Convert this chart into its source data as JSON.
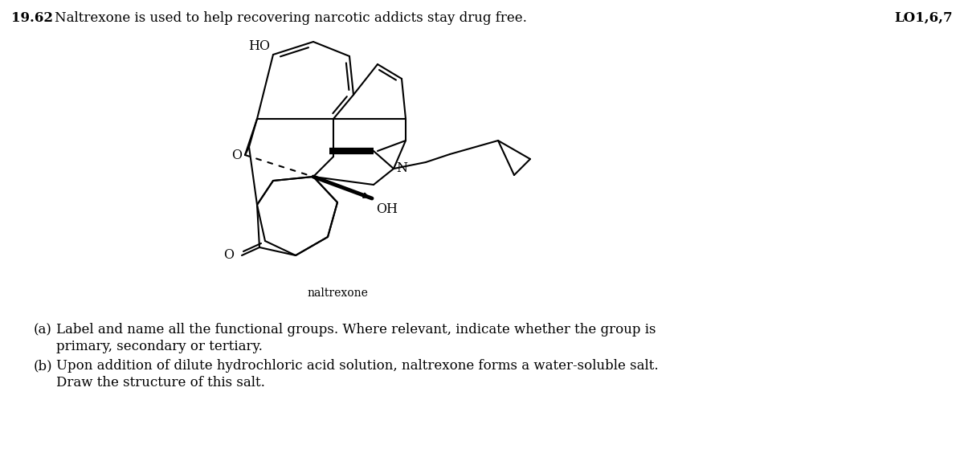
{
  "title_number": "19.62",
  "title_text": "Naltrexone is used to help recovering narcotic addicts stay drug free.",
  "lo_text": "LO1,6,7",
  "compound_name": "naltrexone",
  "bg_color": "#ffffff",
  "text_color": "#000000",
  "figure_width": 12.0,
  "figure_height": 5.74
}
